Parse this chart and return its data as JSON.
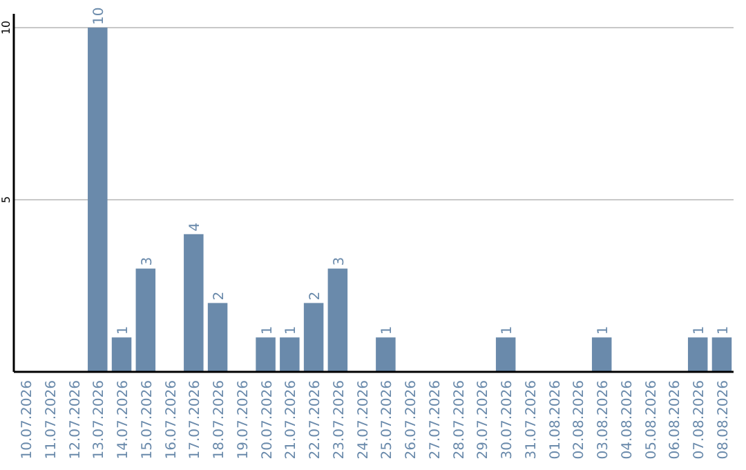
{
  "chart_data": {
    "type": "bar",
    "categories": [
      "10.07.2026",
      "11.07.2026",
      "12.07.2026",
      "13.07.2026",
      "14.07.2026",
      "15.07.2026",
      "16.07.2026",
      "17.07.2026",
      "18.07.2026",
      "19.07.2026",
      "20.07.2026",
      "21.07.2026",
      "22.07.2026",
      "23.07.2026",
      "24.07.2026",
      "25.07.2026",
      "26.07.2026",
      "27.07.2026",
      "28.07.2026",
      "29.07.2026",
      "30.07.2026",
      "31.07.2026",
      "01.08.2026",
      "02.08.2026",
      "03.08.2026",
      "04.08.2026",
      "05.08.2026",
      "06.08.2026",
      "07.08.2026",
      "08.08.2026"
    ],
    "values": [
      0,
      0,
      0,
      10,
      1,
      3,
      0,
      4,
      2,
      0,
      1,
      1,
      2,
      3,
      0,
      1,
      0,
      0,
      0,
      0,
      1,
      0,
      0,
      0,
      1,
      0,
      0,
      0,
      1,
      1
    ],
    "value_labels": [
      null,
      null,
      null,
      "10",
      "1",
      "3",
      null,
      "4",
      "2",
      null,
      "1",
      "1",
      "2",
      "3",
      null,
      "1",
      null,
      null,
      null,
      null,
      "1",
      null,
      null,
      null,
      "1",
      null,
      null,
      null,
      "1",
      "1"
    ],
    "color": "#6a8aab",
    "ylim": [
      0,
      10.4
    ],
    "yticks": [
      5,
      10
    ],
    "grid": "y"
  }
}
